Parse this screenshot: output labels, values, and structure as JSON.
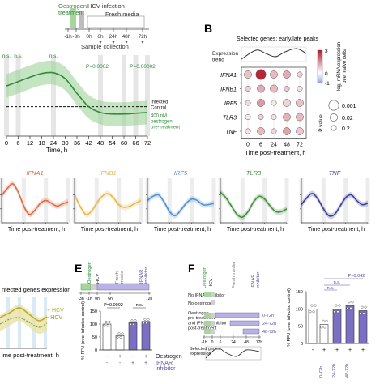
{
  "panels": {
    "A": {
      "timeline": {
        "treatment": "Oestrogen\ntreatment",
        "infection": "HCV infection",
        "media": "Fresh media",
        "ticks": [
          "-1h",
          "-3h",
          "0h",
          "6h",
          "24h",
          "48h",
          "72h"
        ],
        "collection": "Sample collection"
      },
      "chart": {
        "xlabel": "Time, h",
        "xticks": [
          "0",
          "6",
          "12",
          "18",
          "24",
          "30",
          "36",
          "42",
          "48",
          "54",
          "60",
          "66",
          "72"
        ],
        "ns_labels": [
          "n.s.",
          "n.s.",
          "n.s."
        ],
        "p_labels": [
          "P=0.0002",
          "P=0.00002"
        ],
        "control_label": "Infected\nControl",
        "treated_label": "400 nM\noestrogen\npre-treatment",
        "colors": {
          "treated": "#2e8b3a",
          "band": "#9fd49a",
          "control": "#111111",
          "vband": "#e6e6e6"
        }
      }
    },
    "B": {
      "label": "B",
      "title": "Selected genes: early/late peaks",
      "trend_label": "Expression\ntrend",
      "genes": [
        "IFNA1",
        "IFNB1",
        "IRF5",
        "TLR3",
        "TNF"
      ],
      "times": [
        "0",
        "6",
        "24",
        "48",
        "72"
      ],
      "xlabel": "Time post-treatment, h",
      "colorbar_label": "log₂ mRNA expression\nover naïve cells",
      "colorbar_ticks": [
        "3",
        "0",
        "-1"
      ],
      "pvalue_label": "P value",
      "pvalue_legend": [
        "0.001",
        "0.02",
        "0.2"
      ]
    },
    "C": {
      "xlabel": "Time post-treatment, h",
      "gene_names": [
        "IFNA1",
        "IFNB1",
        "IRF5",
        "TLR3",
        "TNF"
      ],
      "colors": [
        "#e8643c",
        "#e8b84a",
        "#4a8fd0",
        "#3f8f3a",
        "#3b3b9a"
      ],
      "xticks": [
        "0",
        "24",
        "48",
        "72"
      ]
    },
    "D": {
      "title": "nfected genes expression",
      "xlabel": "ime post-treatment, h",
      "legend": [
        "+ HCV",
        "- HCV"
      ],
      "colors": {
        "plus": "#b8a626",
        "minus": "#8a9a2a"
      }
    },
    "E": {
      "label": "E",
      "tags": [
        "Oestrogen",
        "HCV",
        "Fresh\nmedia",
        "IFNAR\ninhibitor"
      ],
      "timeline_ticks": [
        "-3h",
        "-1h",
        "0h",
        "6h",
        "72h"
      ],
      "p_labels": [
        "P=0.0002",
        "n.s."
      ],
      "ylabel": "% FFU (over infected control)",
      "yticks": [
        "0",
        "50",
        "100",
        "150"
      ],
      "rows": [
        "Oestrogen",
        "IFNAR\ninhibitor"
      ],
      "row_signs": [
        [
          "-",
          "+",
          "-",
          "+"
        ],
        [
          "-",
          "-",
          "+",
          "+"
        ]
      ]
    },
    "F": {
      "label": "F",
      "tags": [
        "Oestrogen",
        "HCV",
        "Fresh media",
        "IFNAR\ninhibitor"
      ],
      "conditions": [
        "No IFNAR inhibitor",
        "No oestrogen",
        "Oestrogen\npre-treatment\nand IFNAR inhibitor\npost-treatment"
      ],
      "windows": [
        "0-72h",
        "24-72h",
        "48-72h"
      ],
      "selected_label": "Selected genes\nexpression",
      "bar_ticks": [
        "-1h",
        "0",
        "6",
        "24",
        "48",
        "72h"
      ],
      "p_labels": [
        "P=0.042",
        "n.s.",
        "n.s."
      ],
      "ylabel": "% FFU (over infected control)",
      "yticks": [
        "0",
        "50",
        "100",
        "150"
      ],
      "row_signs": [
        "-",
        "+",
        "+",
        "+",
        "+"
      ],
      "bottom_labels": [
        "0-72h",
        "24-72h",
        "48-72h"
      ]
    }
  },
  "chart_data": [
    {
      "type": "line",
      "x": [
        0,
        6,
        12,
        18,
        24,
        30,
        36,
        42,
        48,
        54,
        60,
        66,
        72
      ],
      "series": [
        {
          "name": "400 nM oestrogen pre-treatment",
          "values": [
            1.28,
            1.34,
            1.4,
            1.45,
            1.46,
            1.38,
            1.18,
            1.0,
            0.92,
            0.9,
            0.9,
            0.91,
            0.92
          ]
        },
        {
          "name": "Infected Control",
          "values": [
            1,
            1,
            1,
            1,
            1,
            1,
            1,
            1,
            1,
            1,
            1,
            1,
            1
          ]
        }
      ],
      "xlabel": "Time, h"
    },
    {
      "type": "scatter",
      "genes": [
        "IFNA1",
        "IFNB1",
        "IRF5",
        "TLR3",
        "TNF"
      ],
      "times": [
        0,
        6,
        24,
        48,
        72
      ],
      "log2fc": [
        [
          0.8,
          2.8,
          0.9,
          1.1,
          0.6
        ],
        [
          0.6,
          1.1,
          0.9,
          0.7,
          0.4
        ],
        [
          0.5,
          1.3,
          0.3,
          0.6,
          0.8
        ],
        [
          0.3,
          0.6,
          0.4,
          1.0,
          0.9
        ],
        [
          0.4,
          0.9,
          0.5,
          1.2,
          0.7
        ]
      ],
      "p_value": [
        [
          0.02,
          0.001,
          0.02,
          0.02,
          0.2
        ],
        [
          0.2,
          0.02,
          0.02,
          0.2,
          0.2
        ],
        [
          0.2,
          0.02,
          0.2,
          0.02,
          0.02
        ],
        [
          0.2,
          0.2,
          0.2,
          0.02,
          0.02
        ],
        [
          0.2,
          0.02,
          0.2,
          0.02,
          0.02
        ]
      ]
    },
    {
      "type": "line",
      "x": [
        0,
        6,
        12,
        18,
        24,
        30,
        36,
        42,
        48,
        54,
        60,
        66,
        72
      ],
      "series": [
        {
          "name": "IFNA1",
          "values": [
            0.95,
            1.45,
            1.8,
            1.2,
            0.2,
            -0.4,
            -0.1,
            0.4,
            0.6,
            0.4,
            0.2,
            0.35,
            0.5
          ]
        },
        {
          "name": "IFNB1",
          "values": [
            1.0,
            0.2,
            -0.4,
            -0.2,
            0.4,
            0.9,
            1.1,
            0.8,
            0.3,
            0.1,
            0.2,
            0.4,
            0.6
          ]
        },
        {
          "name": "IRF5",
          "values": [
            0.6,
            0.9,
            1.0,
            0.5,
            -0.2,
            -0.5,
            -0.1,
            0.4,
            0.7,
            0.6,
            0.3,
            0.3,
            0.4
          ]
        },
        {
          "name": "TLR3",
          "values": [
            1.2,
            0.8,
            0.2,
            -0.4,
            -0.6,
            -0.2,
            0.5,
            0.9,
            0.7,
            0.2,
            -0.2,
            -0.2,
            0.0
          ]
        },
        {
          "name": "TNF",
          "values": [
            0.3,
            0.8,
            1.1,
            0.7,
            0.0,
            -0.5,
            -0.4,
            0.2,
            0.8,
            1.0,
            0.6,
            0.3,
            0.4
          ]
        }
      ],
      "xlabel": "Time post-treatment, h"
    },
    {
      "type": "bar",
      "categories": [
        "- / -",
        "+ / -",
        "- / +",
        "+ / +"
      ],
      "values": [
        100,
        55,
        105,
        110
      ],
      "ylabel": "% FFU (over infected control)",
      "ylim": [
        0,
        150
      ]
    },
    {
      "type": "bar",
      "categories": [
        "-",
        "+",
        "0-72h",
        "24-72h",
        "48-72h"
      ],
      "values": [
        100,
        55,
        100,
        110,
        95
      ],
      "ylabel": "% FFU (over infected control)",
      "ylim": [
        0,
        150
      ]
    }
  ]
}
